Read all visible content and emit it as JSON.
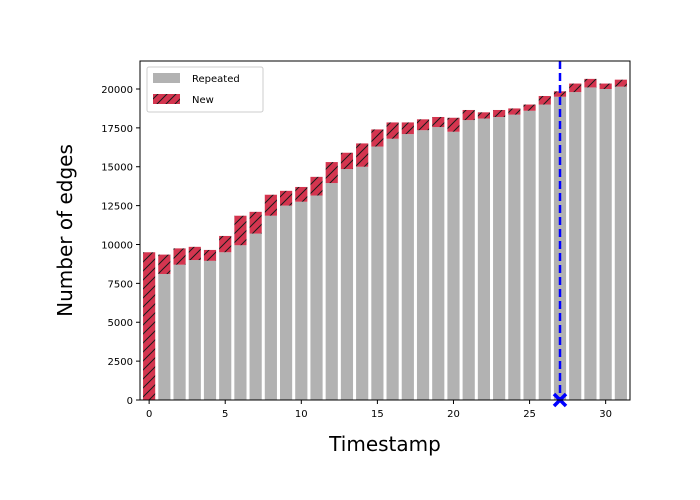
{
  "chart_data": {
    "type": "bar",
    "stacked": true,
    "xlabel": "Timestamp",
    "ylabel": "Number of edges",
    "xlim": [
      -0.6,
      31.6
    ],
    "ylim": [
      0,
      21800
    ],
    "x_ticks": [
      0,
      5,
      10,
      15,
      20,
      25,
      30
    ],
    "y_ticks": [
      0,
      2500,
      5000,
      7500,
      10000,
      12500,
      15000,
      17500,
      20000
    ],
    "y_tick_labels": [
      "0",
      "2500",
      "5000",
      "7500",
      "10000",
      "12500",
      "15000",
      "17500",
      "20000"
    ],
    "x_tick_labels": [
      "0",
      "5",
      "10",
      "15",
      "20",
      "25",
      "30"
    ],
    "grid": false,
    "legend_position": "top-left",
    "x": [
      0,
      1,
      2,
      3,
      4,
      5,
      6,
      7,
      8,
      9,
      10,
      11,
      12,
      13,
      14,
      15,
      16,
      17,
      18,
      19,
      20,
      21,
      22,
      23,
      24,
      25,
      26,
      27,
      28,
      29,
      30,
      31
    ],
    "series": [
      {
        "name": "Repeated",
        "color": "#b2b2b2",
        "hatch": false,
        "values": [
          0,
          8100,
          8700,
          9000,
          8950,
          9500,
          9950,
          10700,
          11850,
          12500,
          12750,
          13150,
          13950,
          14850,
          15000,
          16300,
          16800,
          17100,
          17350,
          17550,
          17250,
          18000,
          18100,
          18200,
          18350,
          18600,
          19000,
          19500,
          19800,
          20100,
          20000,
          20150
        ]
      },
      {
        "name": "New",
        "color": "#d4354f",
        "hatch": true,
        "values": [
          9500,
          1250,
          1050,
          850,
          700,
          1050,
          1900,
          1400,
          1350,
          950,
          950,
          1200,
          1350,
          1050,
          1500,
          1100,
          1050,
          750,
          700,
          650,
          900,
          650,
          400,
          450,
          400,
          400,
          550,
          350,
          550,
          550,
          350,
          450
        ]
      }
    ],
    "annotations": [
      {
        "type": "vertical-line",
        "x": 27,
        "color": "#0000ff",
        "style": "dashed"
      },
      {
        "type": "marker",
        "x": 27,
        "y": 0,
        "symbol": "x",
        "color": "#0000ff"
      }
    ]
  }
}
